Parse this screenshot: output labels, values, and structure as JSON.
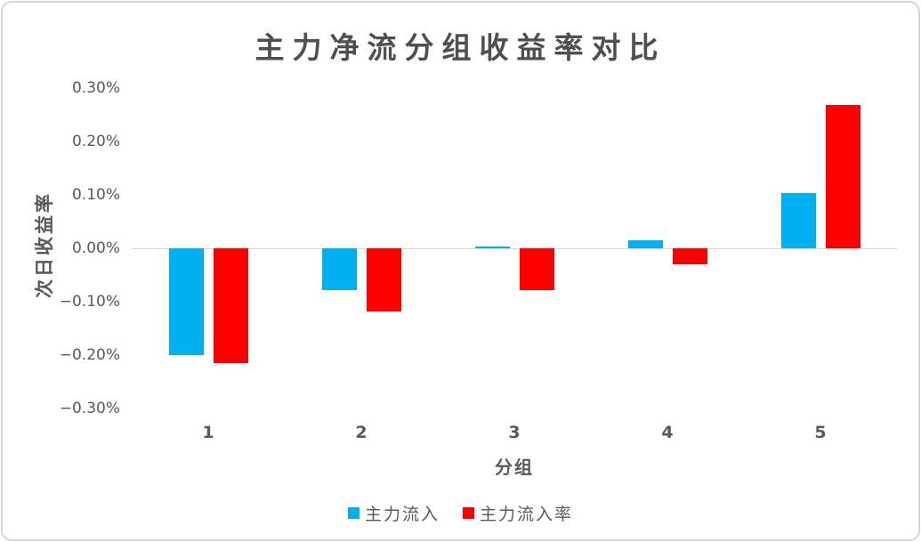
{
  "chart_data": {
    "type": "bar",
    "title": "主力净流分组收益率对比",
    "xlabel": "分组",
    "ylabel": "次日收益率",
    "categories": [
      "1",
      "2",
      "3",
      "4",
      "5"
    ],
    "series": [
      {
        "id": "main-inflow",
        "name": "主力流入",
        "color": "#00B0F0",
        "values": [
          -0.2,
          -0.079,
          0.004,
          0.015,
          0.103
        ]
      },
      {
        "id": "main-inflow-rate",
        "name": "主力流入率",
        "color": "#FF0000",
        "values": [
          -0.215,
          -0.119,
          -0.079,
          -0.03,
          0.268
        ]
      }
    ],
    "unit": "%",
    "ylim": [
      -0.3,
      0.3
    ],
    "yticks": [
      0.3,
      0.2,
      0.1,
      0.0,
      -0.1,
      -0.2,
      -0.3
    ],
    "ytick_labels": [
      "0.30%",
      "0.20%",
      "0.10%",
      "0.00%",
      "−0.10%",
      "−0.20%",
      "−0.30%"
    ],
    "grid": false,
    "legend_position": "bottom"
  },
  "colors": {
    "bar_blue": "#00B0F0",
    "bar_red": "#FF0000",
    "text": "#595959",
    "title_text": "#4f4f4f",
    "zero_line": "#ddd6cd",
    "card_border": "#d6d6d6"
  }
}
